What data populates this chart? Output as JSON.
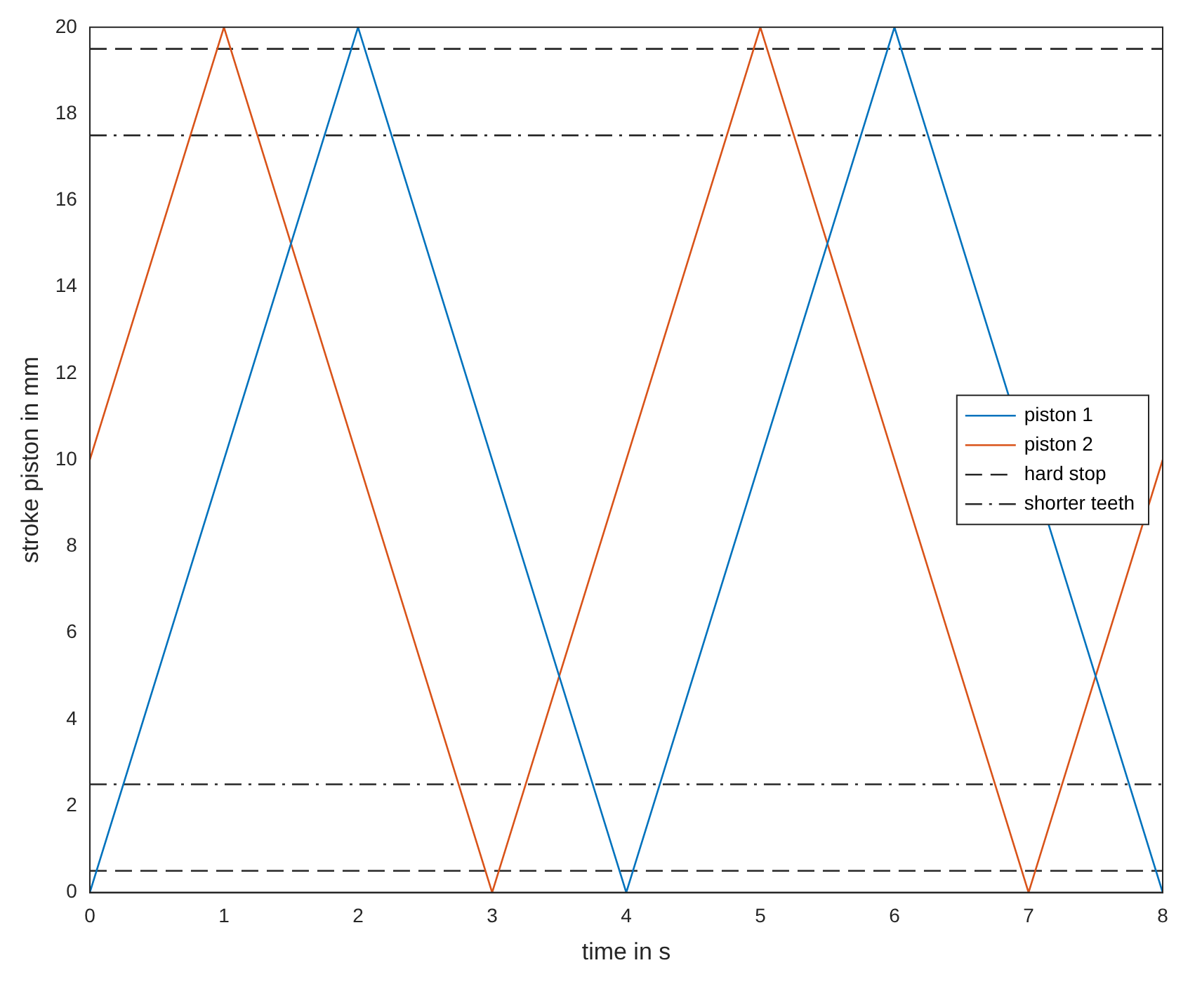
{
  "chart_data": {
    "type": "line",
    "xlabel": "time in s",
    "ylabel": "stroke piston in mm",
    "xlim": [
      0,
      8
    ],
    "xticks": [
      0,
      1,
      2,
      3,
      4,
      5,
      6,
      7,
      8
    ],
    "ylim": [
      0,
      20
    ],
    "yticks": [
      0,
      2,
      4,
      6,
      8,
      10,
      12,
      14,
      16,
      18,
      20
    ],
    "grid": false,
    "legend": "right",
    "marker": "none",
    "line_style": "solid",
    "series": [
      {
        "name": "piston 1",
        "color": "#0072bd",
        "x": [
          0,
          2,
          4,
          6,
          8
        ],
        "values": [
          0,
          20,
          0,
          20,
          0
        ]
      },
      {
        "name": "piston 2",
        "color": "#d95319",
        "x": [
          0,
          1,
          3,
          5,
          7,
          8
        ],
        "values": [
          10,
          20,
          0,
          20,
          0,
          10
        ]
      }
    ],
    "ref_lines": [
      {
        "axis": "y",
        "value": 19.5,
        "label": "hard stop",
        "color": "#262626",
        "line_style": "dashed"
      },
      {
        "axis": "y",
        "value": 0.5,
        "label": null,
        "color": "#262626",
        "line_style": "dashed"
      },
      {
        "axis": "y",
        "value": 17.5,
        "label": "shorter teeth",
        "color": "#262626",
        "line_style": "dashdot"
      },
      {
        "axis": "y",
        "value": 2.5,
        "label": null,
        "color": "#262626",
        "line_style": "dashdot"
      }
    ]
  }
}
